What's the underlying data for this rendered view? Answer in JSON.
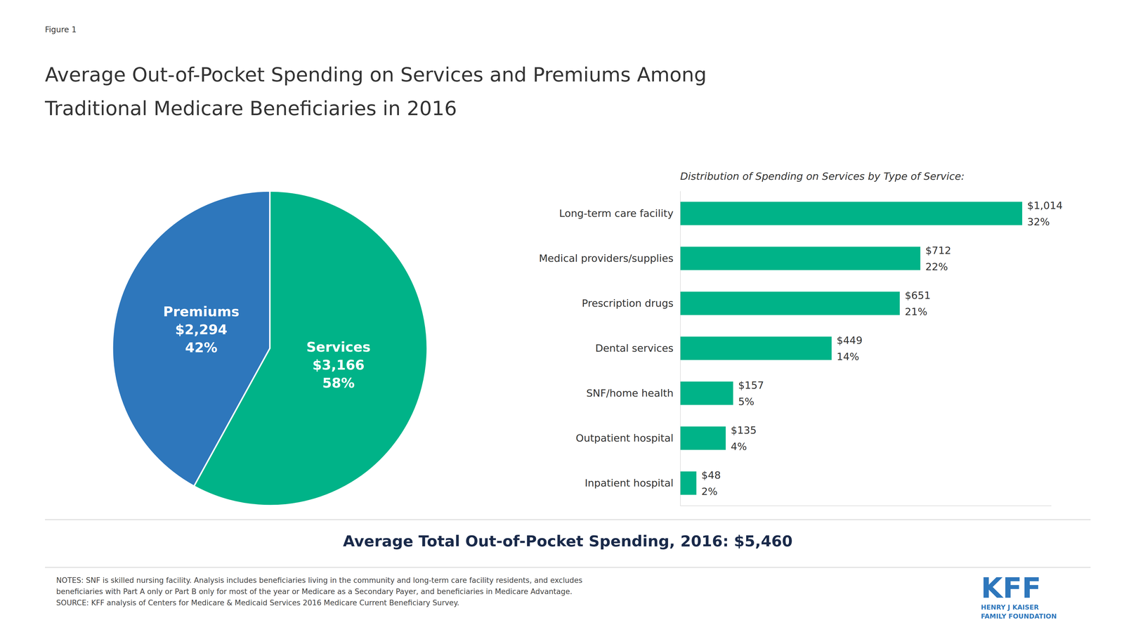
{
  "chart_data": [
    {
      "type": "pie",
      "title": "Average Out-of-Pocket Spending on Services and Premiums Among\nTraditional Medicare Beneficiaries in 2016",
      "categories": [
        "Services",
        "Premiums"
      ],
      "values": [
        58,
        42
      ],
      "value_labels": [
        "58%",
        "42%"
      ],
      "amounts": [
        3166,
        2294
      ],
      "amount_labels": [
        "$3,166",
        "$2,294"
      ],
      "colors": [
        "#00B388",
        "#2E77BC"
      ],
      "data_labels": true,
      "annotations": [
        {
          "text": "Figure 1"
        },
        {
          "text": "Average Total Out-of-Pocket Spending, 2016: $5,460"
        },
        {
          "text": "NOTES:  SNF is skilled nursing facility. Analysis includes beneficiaries living in the community and long-term care facility residents, and excludes\nbeneficiaries with Part A only or Part B only for most of the year or Medicare as a Secondary Payer, and beneficiaries in Medicare Advantage.\nSOURCE:  KFF analysis of Centers for Medicare & Medicaid Services 2016 Medicare Current Beneficiary Survey."
        },
        {
          "text": "KFF",
          "color": "#2E77BC"
        },
        {
          "text": "HENRY J KAISER\nFAMILY FOUNDATION",
          "color": "#2E77BC"
        }
      ]
    },
    {
      "type": "bar",
      "orientation": "horizontal",
      "subtitle": "Distribution of Spending on Services by Type of Service:",
      "categories": [
        "Long-term care facility",
        "Medical providers/supplies",
        "Prescription drugs",
        "Dental services",
        "SNF/home health",
        "Outpatient hospital",
        "Inpatient hospital"
      ],
      "values": [
        1014,
        712,
        651,
        449,
        157,
        135,
        48
      ],
      "value_labels": [
        "$1,014",
        "$712",
        "$651",
        "$449",
        "$157",
        "$135",
        "$48"
      ],
      "shares": [
        32,
        22,
        21,
        14,
        5,
        4,
        2
      ],
      "share_labels": [
        "32%",
        "22%",
        "21%",
        "14%",
        "5%",
        "4%",
        "2%"
      ],
      "color": "#00B388",
      "xlim": [
        0,
        1100
      ],
      "xticks": [],
      "grid": false,
      "data_labels": true,
      "tick_labels": "y"
    }
  ]
}
